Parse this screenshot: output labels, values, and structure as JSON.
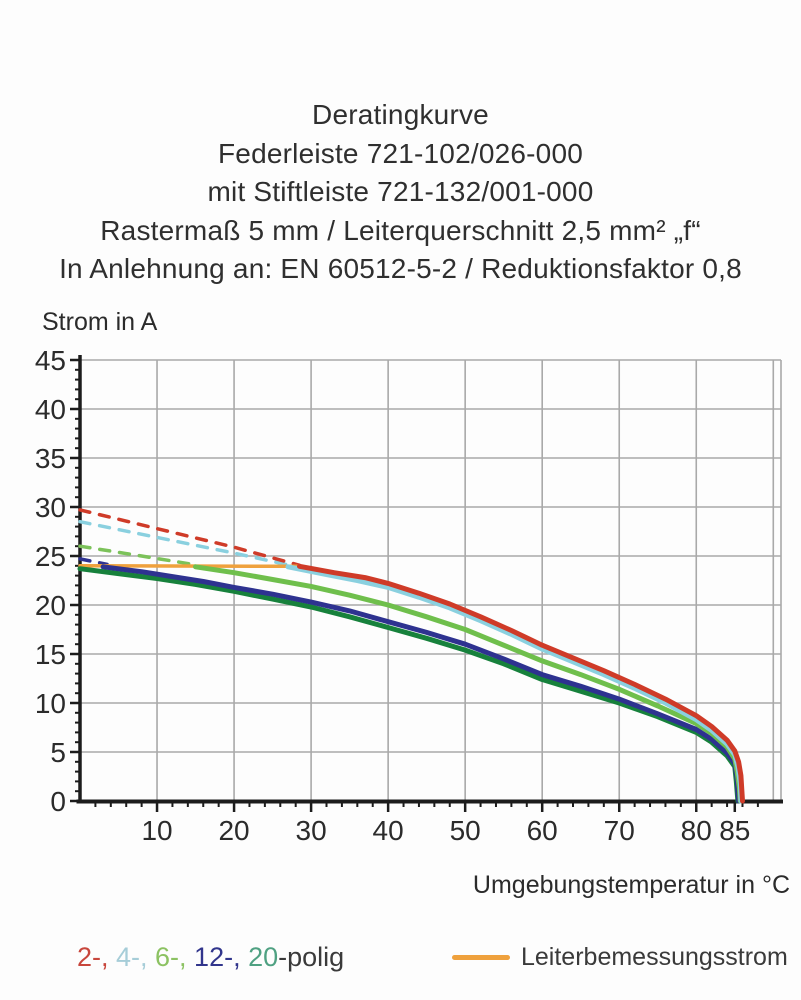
{
  "chart_data": {
    "type": "line",
    "title": "Deratingkurve",
    "subtitle_lines": [
      "Federleiste 721-102/026-000",
      "mit Stiftleiste 721-132/001-000",
      "Rastermaß 5 mm / Leiterquerschnitt 2,5 mm² „f“",
      "In Anlehnung an: EN 60512-5-2 / Reduktionsfaktor 0,8"
    ],
    "xlabel": "Umgebungstemperatur in °C",
    "ylabel": "Strom in A",
    "xlim": [
      0,
      91
    ],
    "ylim": [
      0,
      45
    ],
    "x_ticks": [
      10,
      20,
      30,
      40,
      50,
      60,
      70,
      80,
      85
    ],
    "x_gridlines": [
      10,
      20,
      30,
      40,
      50,
      60,
      70,
      80,
      90
    ],
    "y_ticks": [
      0,
      5,
      10,
      15,
      20,
      25,
      30,
      35,
      40,
      45
    ],
    "x_minor_step": 2,
    "y_minor_step": 1,
    "grid": true,
    "legend_position": "bottom",
    "colors": {
      "grid": "#a9a9a9",
      "axis": "#1c1c1c",
      "tick_text": "#2b2b2b"
    },
    "series": [
      {
        "name": "12-polig",
        "variant": "dashed",
        "color": "#2e3290",
        "points": [
          [
            0,
            24.7
          ],
          [
            3.5,
            24.15
          ]
        ]
      },
      {
        "name": "6-polig",
        "variant": "dashed",
        "color": "#7cc25a",
        "points": [
          [
            0,
            26.0
          ],
          [
            8,
            25.0
          ],
          [
            15,
            24.1
          ]
        ]
      },
      {
        "name": "4-polig",
        "variant": "dashed",
        "color": "#8ad0df",
        "points": [
          [
            0,
            28.5
          ],
          [
            10,
            26.9
          ],
          [
            20,
            25.3
          ],
          [
            27,
            24.1
          ]
        ]
      },
      {
        "name": "2-polig",
        "variant": "dashed",
        "color": "#cf3b28",
        "points": [
          [
            0,
            29.7
          ],
          [
            10,
            27.8
          ],
          [
            20,
            25.9
          ],
          [
            28.5,
            24.05
          ]
        ]
      },
      {
        "name": "Leiterbemessungsstrom",
        "variant": "rated",
        "color": "#efa13d",
        "points": [
          [
            0,
            24.0
          ],
          [
            28.5,
            23.95
          ]
        ]
      },
      {
        "name": "20-polig",
        "variant": "solid",
        "color": "#17813c",
        "points": [
          [
            0,
            23.7
          ],
          [
            5,
            23.2
          ],
          [
            10,
            22.7
          ],
          [
            15,
            22.1
          ],
          [
            20,
            21.4
          ],
          [
            25,
            20.6
          ],
          [
            30,
            19.8
          ],
          [
            35,
            18.8
          ],
          [
            40,
            17.7
          ],
          [
            45,
            16.6
          ],
          [
            50,
            15.4
          ],
          [
            55,
            14.0
          ],
          [
            60,
            12.4
          ],
          [
            65,
            11.2
          ],
          [
            70,
            10.0
          ],
          [
            75,
            8.6
          ],
          [
            80,
            7.0
          ],
          [
            82,
            6.0
          ],
          [
            84,
            4.6
          ],
          [
            85,
            3.5
          ],
          [
            85.2,
            2.0
          ],
          [
            85.4,
            0
          ]
        ]
      },
      {
        "name": "12-polig",
        "variant": "solid",
        "color": "#2e3290",
        "points": [
          [
            3,
            23.9
          ],
          [
            8,
            23.4
          ],
          [
            12,
            22.9
          ],
          [
            16,
            22.4
          ],
          [
            20,
            21.8
          ],
          [
            25,
            21.1
          ],
          [
            30,
            20.3
          ],
          [
            35,
            19.4
          ],
          [
            40,
            18.3
          ],
          [
            45,
            17.2
          ],
          [
            50,
            16.0
          ],
          [
            55,
            14.5
          ],
          [
            60,
            12.9
          ],
          [
            65,
            11.7
          ],
          [
            70,
            10.4
          ],
          [
            75,
            8.9
          ],
          [
            80,
            7.3
          ],
          [
            82,
            6.3
          ],
          [
            84,
            4.9
          ],
          [
            85,
            3.8
          ],
          [
            85.3,
            2.3
          ],
          [
            85.5,
            0
          ]
        ]
      },
      {
        "name": "6-polig",
        "variant": "solid",
        "color": "#6fbf4c",
        "points": [
          [
            15,
            23.9
          ],
          [
            20,
            23.3
          ],
          [
            25,
            22.6
          ],
          [
            30,
            21.9
          ],
          [
            35,
            21.0
          ],
          [
            40,
            20.0
          ],
          [
            45,
            18.8
          ],
          [
            50,
            17.5
          ],
          [
            55,
            15.9
          ],
          [
            60,
            14.3
          ],
          [
            65,
            12.9
          ],
          [
            70,
            11.4
          ],
          [
            75,
            9.7
          ],
          [
            80,
            7.9
          ],
          [
            82,
            6.9
          ],
          [
            84,
            5.5
          ],
          [
            85,
            4.3
          ],
          [
            85.3,
            3.0
          ],
          [
            85.6,
            1.3
          ],
          [
            85.7,
            0
          ]
        ]
      },
      {
        "name": "4-polig",
        "variant": "solid",
        "color": "#8ad0df",
        "points": [
          [
            27,
            23.9
          ],
          [
            32,
            23.1
          ],
          [
            36,
            22.5
          ],
          [
            40,
            21.8
          ],
          [
            44,
            20.8
          ],
          [
            48,
            19.7
          ],
          [
            52,
            18.4
          ],
          [
            56,
            17.0
          ],
          [
            60,
            15.5
          ],
          [
            64,
            14.2
          ],
          [
            68,
            12.9
          ],
          [
            72,
            11.5
          ],
          [
            76,
            10.0
          ],
          [
            80,
            8.3
          ],
          [
            82,
            7.2
          ],
          [
            84,
            5.8
          ],
          [
            85,
            4.7
          ],
          [
            85.4,
            3.5
          ],
          [
            85.7,
            1.8
          ],
          [
            85.8,
            0
          ]
        ]
      },
      {
        "name": "2-polig",
        "variant": "solid",
        "color": "#cf3b28",
        "points": [
          [
            28.5,
            23.95
          ],
          [
            33,
            23.3
          ],
          [
            37,
            22.8
          ],
          [
            40,
            22.2
          ],
          [
            44,
            21.2
          ],
          [
            48,
            20.1
          ],
          [
            52,
            18.8
          ],
          [
            56,
            17.4
          ],
          [
            60,
            15.9
          ],
          [
            64,
            14.6
          ],
          [
            68,
            13.3
          ],
          [
            72,
            11.9
          ],
          [
            76,
            10.4
          ],
          [
            80,
            8.7
          ],
          [
            82,
            7.6
          ],
          [
            84,
            6.2
          ],
          [
            85,
            5.1
          ],
          [
            85.5,
            4.0
          ],
          [
            85.8,
            2.6
          ],
          [
            86,
            0
          ]
        ]
      }
    ]
  },
  "legend": {
    "pole_tokens": [
      {
        "text": "2-, ",
        "color": "#c8463c"
      },
      {
        "text": "4-, ",
        "color": "#a6cdd8"
      },
      {
        "text": "6-, ",
        "color": "#8cc262"
      },
      {
        "text": "12-, ",
        "color": "#31358c"
      },
      {
        "text": "20",
        "color": "#4fa182"
      },
      {
        "text": "-polig",
        "color": "#3a3a3a"
      }
    ],
    "rated_current_label": "Leiterbemessungsstrom",
    "rated_current_color": "#efa13d"
  }
}
